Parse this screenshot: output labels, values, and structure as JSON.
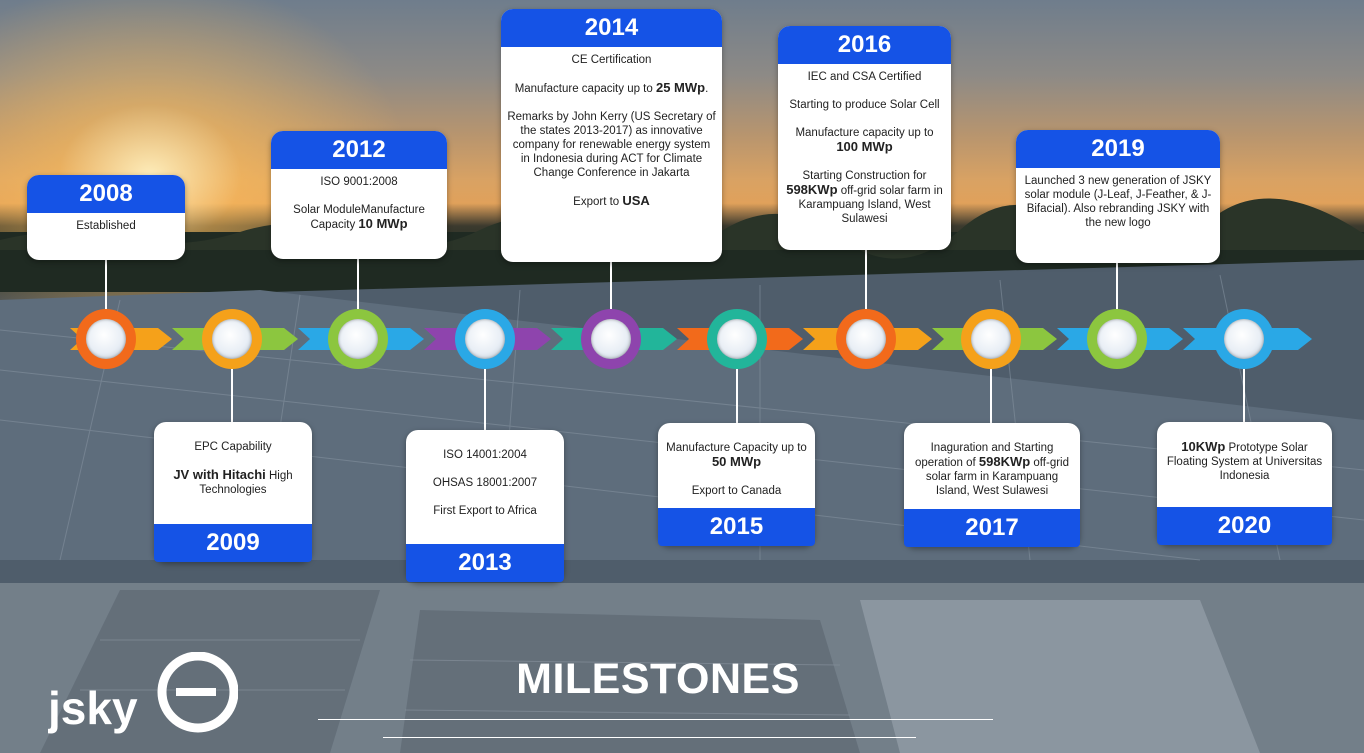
{
  "slide": {
    "title": "MILESTONES",
    "logo": {
      "wordmark": "jsky"
    }
  },
  "colors": {
    "blue": "#1553e6",
    "orange": "#f26a1b",
    "amber": "#f5a11a",
    "green": "#8cc63f",
    "cyan": "#2aa8e6",
    "purple": "#8e44ad",
    "teal": "#22b59a"
  },
  "milestones": [
    {
      "year": "2008",
      "position": "top",
      "color": "#f26a1b",
      "lines": [
        "Established"
      ]
    },
    {
      "year": "2009",
      "position": "bottom",
      "color": "#f5a11a",
      "lines": [
        "EPC Capability",
        "JV with Hitachi High Technologies"
      ]
    },
    {
      "year": "2012",
      "position": "top",
      "color": "#8cc63f",
      "lines": [
        "ISO 9001:2008",
        "Solar ModuleManufacture Capacity 10 MWp"
      ]
    },
    {
      "year": "2013",
      "position": "bottom",
      "color": "#2aa8e6",
      "lines": [
        "ISO 14001:2004",
        "OHSAS 18001:2007",
        "First Export to Africa"
      ]
    },
    {
      "year": "2014",
      "position": "top",
      "color": "#8e44ad",
      "lines": [
        "CE Certification",
        "Manufacture capacity up to 25 MWp.",
        "Remarks by John Kerry (US Secretary of the states 2013-2017) as innovative company for renewable energy system in Indonesia during ACT for Climate Change Conference in Jakarta",
        "Export to USA"
      ]
    },
    {
      "year": "2015",
      "position": "bottom",
      "color": "#22b59a",
      "lines": [
        "Manufacture Capacity up to 50 MWp",
        "Export to Canada"
      ]
    },
    {
      "year": "2016",
      "position": "top",
      "color": "#f26a1b",
      "lines": [
        "IEC and CSA Certified",
        "Starting to produce Solar Cell",
        "Manufacture capacity up to 100 MWp",
        "Starting Construction for 598KWp off-grid solar farm in Karampuang Island, West Sulawesi"
      ]
    },
    {
      "year": "2017",
      "position": "bottom",
      "color": "#f5a11a",
      "lines": [
        "Inaguration and Starting operation of 598KWp off-grid solar farm in Karampuang Island, West Sulawesi"
      ]
    },
    {
      "year": "2019",
      "position": "top",
      "color": "#8cc63f",
      "lines": [
        "Launched 3 new generation of JSKY solar module (J-Leaf, J-Feather, & J-Bifacial). Also rebranding JSKY with the new logo"
      ]
    },
    {
      "year": "2020",
      "position": "bottom",
      "color": "#2aa8e6",
      "lines": [
        "10KWp Prototype Solar Floating System at Universitas Indonesia"
      ]
    }
  ]
}
